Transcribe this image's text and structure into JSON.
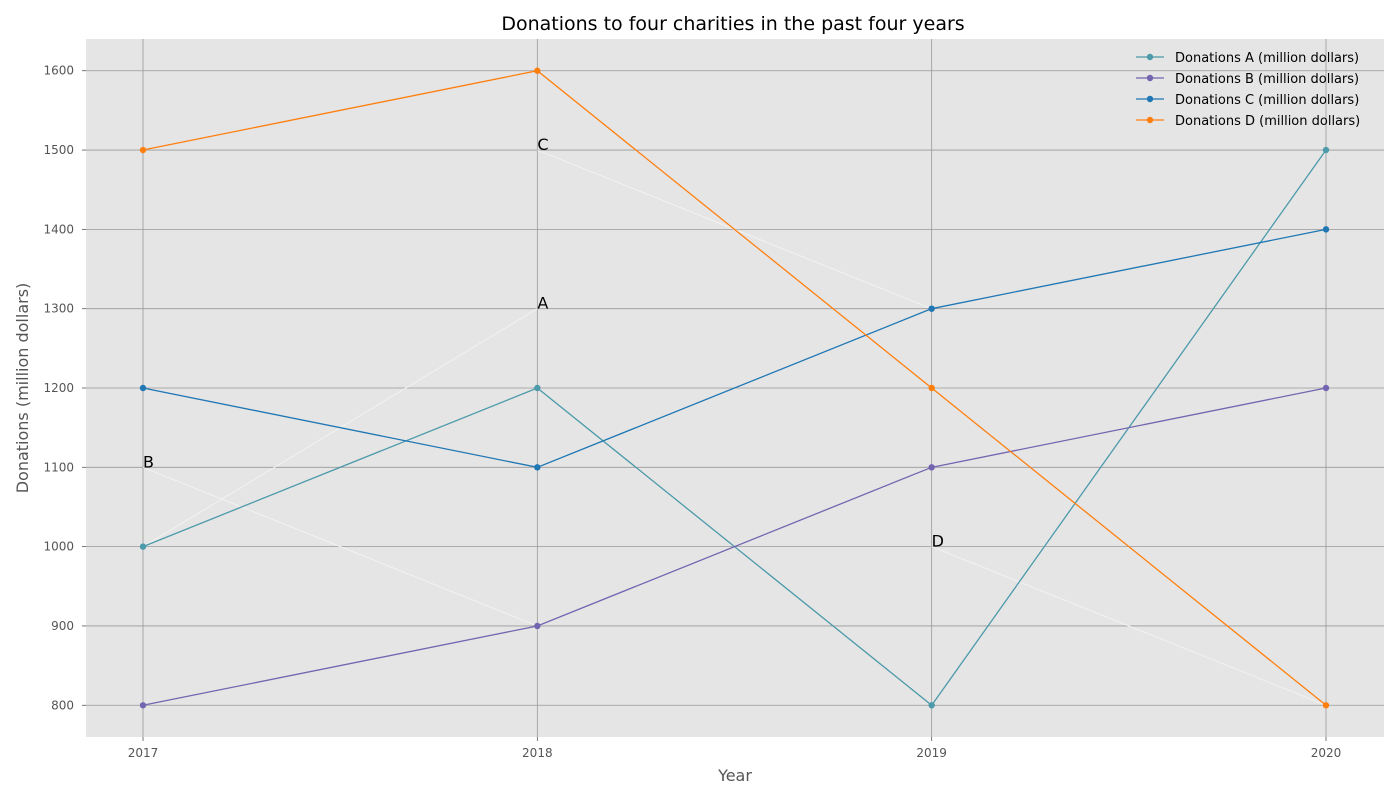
{
  "chart_data": {
    "type": "line",
    "title": "Donations to four charities in the past four years",
    "xlabel": "Year",
    "ylabel": "Donations (million dollars)",
    "categories": [
      "2017",
      "2018",
      "2019",
      "2020"
    ],
    "ylim": [
      760,
      1640
    ],
    "yticks": [
      800,
      900,
      1000,
      1100,
      1200,
      1300,
      1400,
      1500,
      1600
    ],
    "grid": true,
    "legend_position": "top-right",
    "series": [
      {
        "name": "Donations A (million dollars)",
        "values": [
          1000,
          1200,
          800,
          1500
        ],
        "color": "#4c9aaa"
      },
      {
        "name": "Donations B (million dollars)",
        "values": [
          800,
          900,
          1100,
          1200
        ],
        "color": "#7465b0"
      },
      {
        "name": "Donations C (million dollars)",
        "values": [
          1200,
          1100,
          1300,
          1400
        ],
        "color": "#1f77b4"
      },
      {
        "name": "Donations D (million dollars)",
        "values": [
          1500,
          1600,
          1200,
          800
        ],
        "color": "#ff7f0e"
      }
    ],
    "annotations": [
      {
        "text": "A",
        "x": "2018",
        "y": 1300,
        "arrow_from": {
          "x": "2017",
          "y": 1000
        }
      },
      {
        "text": "B",
        "x": "2017",
        "y": 1100,
        "arrow_from": {
          "x": "2018",
          "y": 900
        }
      },
      {
        "text": "C",
        "x": "2018",
        "y": 1500,
        "arrow_from": {
          "x": "2019",
          "y": 1300
        }
      },
      {
        "text": "D",
        "x": "2019",
        "y": 1000,
        "arrow_from": {
          "x": "2020",
          "y": 800
        }
      }
    ],
    "colors": {
      "plot_background": "#e5e5e5",
      "grid": "#999999",
      "annotation_arrow": "#f2f2f2"
    }
  }
}
